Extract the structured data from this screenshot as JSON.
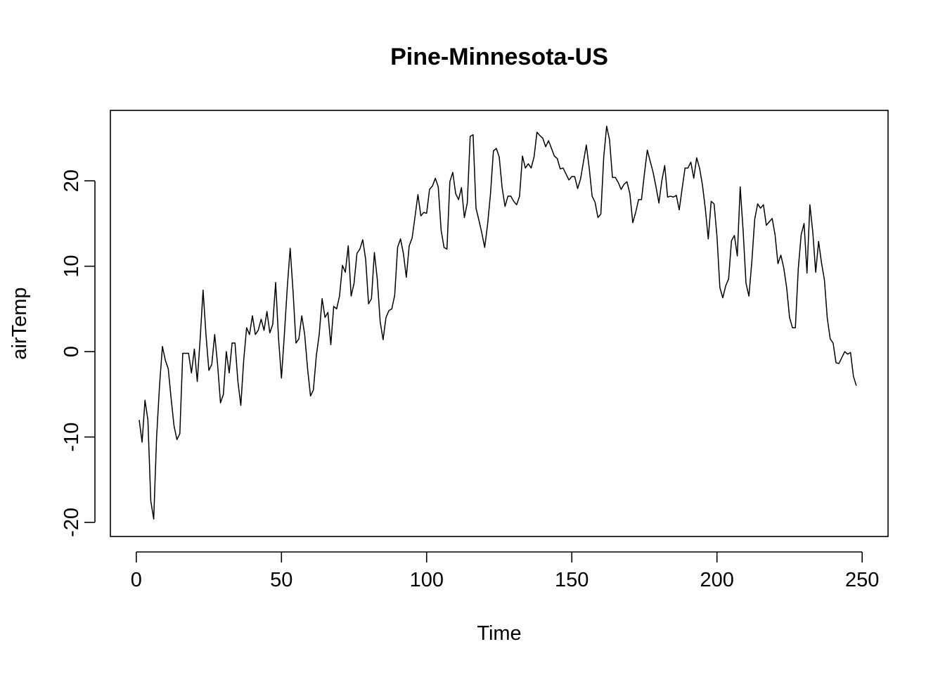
{
  "chart_data": {
    "type": "line",
    "title": "Pine-Minnesota-US",
    "xlabel": "Time",
    "ylabel": "airTemp",
    "xlim": [
      -8.92,
      258.92
    ],
    "ylim": [
      -21.65,
      28.25
    ],
    "x_ticks": [
      0,
      50,
      100,
      150,
      200,
      250
    ],
    "y_ticks": [
      -20,
      -10,
      0,
      10,
      20
    ],
    "x_tick_labels": [
      "0",
      "50",
      "100",
      "150",
      "200",
      "250"
    ],
    "y_tick_labels": [
      "-20",
      "-10",
      "0",
      "10",
      "20"
    ],
    "grid": false,
    "legend": "none",
    "line_color": "#000000",
    "series": [
      {
        "x_start": 1,
        "values": [
          -8.0,
          -10.6,
          -5.7,
          -8.0,
          -17.5,
          -19.6,
          -10.0,
          -4.0,
          0.6,
          -1.0,
          -2.0,
          -5.5,
          -8.7,
          -10.3,
          -9.6,
          -0.2,
          -0.2,
          -0.2,
          -2.5,
          0.3,
          -3.5,
          1.5,
          7.2,
          2.0,
          -2.2,
          -1.5,
          2.0,
          -1.5,
          -6.0,
          -5.0,
          0.0,
          -2.5,
          1.0,
          1.0,
          -3.5,
          -6.3,
          -1.0,
          2.8,
          2.0,
          4.2,
          2.0,
          2.5,
          3.8,
          2.5,
          4.7,
          2.2,
          3.2,
          8.1,
          1.5,
          -3.1,
          2.0,
          7.5,
          12.1,
          7.0,
          1.0,
          1.5,
          4.2,
          2.0,
          -2.0,
          -5.2,
          -4.5,
          -0.5,
          2.0,
          6.2,
          4.0,
          4.6,
          0.8,
          5.3,
          5.0,
          6.5,
          10.1,
          9.3,
          12.4,
          6.5,
          8.0,
          11.5,
          12.0,
          13.1,
          10.8,
          5.6,
          6.2,
          11.6,
          8.5,
          3.5,
          1.4,
          4.0,
          4.8,
          5.0,
          6.6,
          12.2,
          13.2,
          11.5,
          8.7,
          12.4,
          13.3,
          15.8,
          18.4,
          15.9,
          16.3,
          16.2,
          19.0,
          19.4,
          20.3,
          19.3,
          14.2,
          12.2,
          12.0,
          19.9,
          21.0,
          18.5,
          17.8,
          19.2,
          15.7,
          17.4,
          25.2,
          25.4,
          16.8,
          15.4,
          13.9,
          12.2,
          14.9,
          18.5,
          23.5,
          23.8,
          22.8,
          19.2,
          17.0,
          18.2,
          18.2,
          17.6,
          17.2,
          18.2,
          22.9,
          21.5,
          22.0,
          21.5,
          22.8,
          25.7,
          25.3,
          25.0,
          24.0,
          24.7,
          23.8,
          22.9,
          22.6,
          21.4,
          21.5,
          20.8,
          20.1,
          20.5,
          20.5,
          19.1,
          20.2,
          22.2,
          24.2,
          21.5,
          18.2,
          17.5,
          15.7,
          16.1,
          22.8,
          26.4,
          24.8,
          20.4,
          20.4,
          19.8,
          19.0,
          19.6,
          19.9,
          18.5,
          15.1,
          16.3,
          17.8,
          17.8,
          20.8,
          23.6,
          22.3,
          21.0,
          19.3,
          17.4,
          20.0,
          21.8,
          18.1,
          18.2,
          18.1,
          18.3,
          16.6,
          19.1,
          21.5,
          21.5,
          22.2,
          20.3,
          22.7,
          21.5,
          19.5,
          16.7,
          13.2,
          17.6,
          17.3,
          13.5,
          7.5,
          6.3,
          7.7,
          8.5,
          13.0,
          13.6,
          11.2,
          19.3,
          14.2,
          8.0,
          6.5,
          10.5,
          15.5,
          17.3,
          16.8,
          17.2,
          14.8,
          15.2,
          15.6,
          13.7,
          10.3,
          11.3,
          9.8,
          7.5,
          4.0,
          2.8,
          2.8,
          9.7,
          13.7,
          15.0,
          9.2,
          17.2,
          14.0,
          9.3,
          12.9,
          10.4,
          8.4,
          3.9,
          1.5,
          1.0,
          -1.3,
          -1.4,
          -0.7,
          0.0,
          -0.3,
          -0.1,
          -2.9,
          -4.0
        ]
      }
    ]
  }
}
